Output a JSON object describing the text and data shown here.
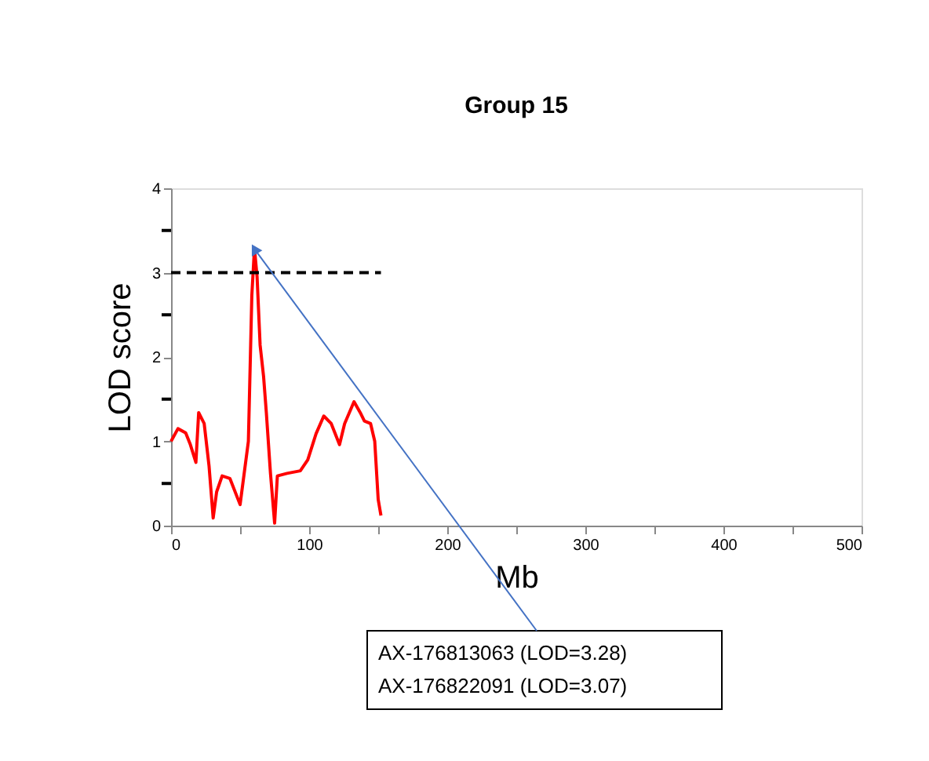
{
  "chart_data": {
    "type": "line",
    "title": "Group 15",
    "xlabel": "Mb",
    "ylabel": "LOD score",
    "x": [
      0,
      5,
      10.6,
      14,
      18,
      20,
      24,
      27.5,
      30.5,
      33,
      37,
      42.6,
      50,
      56,
      58.5,
      60.4,
      62.3,
      64.5,
      67,
      69,
      72,
      75,
      77,
      84,
      93.6,
      99,
      105,
      110.6,
      116,
      122,
      125.7,
      132.5,
      137,
      140,
      144.5,
      147.5,
      150,
      152
    ],
    "series": [
      {
        "color": "#ff0000",
        "values": [
          1.0,
          1.15,
          1.1,
          0.96,
          0.75,
          1.34,
          1.21,
          0.71,
          0.09,
          0.4,
          0.59,
          0.56,
          0.25,
          1.0,
          2.73,
          3.29,
          2.95,
          2.14,
          1.77,
          1.34,
          0.62,
          0.03,
          0.59,
          0.62,
          0.65,
          0.78,
          1.09,
          1.3,
          1.21,
          0.96,
          1.21,
          1.47,
          1.34,
          1.24,
          1.21,
          1.0,
          0.31,
          0.12
        ]
      }
    ],
    "xlim": [
      0,
      500
    ],
    "ylim": [
      0,
      4
    ],
    "xticks": [
      0,
      {
        "value": 50,
        "label": null
      },
      100,
      {
        "value": 150,
        "label": null
      },
      200,
      {
        "value": 250,
        "label": null
      },
      300,
      {
        "value": 350,
        "label": null
      },
      400,
      {
        "value": 450,
        "label": null
      },
      500
    ],
    "yticks": [
      0,
      {
        "value": 0.5,
        "label": null
      },
      1,
      {
        "value": 1.5,
        "label": null
      },
      2,
      {
        "value": 2.5,
        "label": null
      },
      3,
      {
        "value": 3.5,
        "label": null
      },
      4
    ],
    "ref_lines": [
      {
        "axis": "y",
        "value": 3,
        "line_style": "dashed",
        "color": "#000000"
      }
    ],
    "annotations": [
      {
        "text": "AX-176813063 (LOD=3.28)",
        "x": 60.4,
        "y": 3.28
      },
      "AX-176822091 (LOD=3.07)"
    ],
    "grid": false,
    "marker": "none",
    "line_style": "solid"
  }
}
